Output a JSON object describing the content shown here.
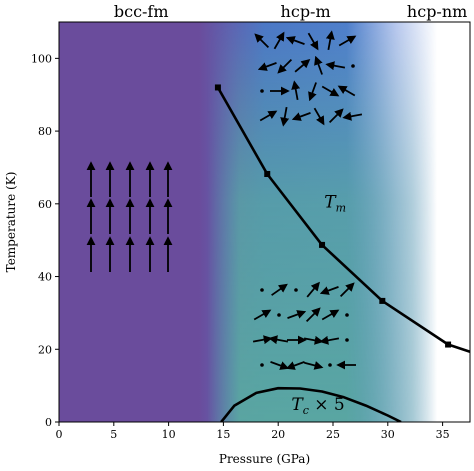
{
  "chart_data": {
    "type": "line",
    "xlabel": "Pressure (GPa)",
    "ylabel": "Temperature (K)",
    "xlim": [
      0,
      37.5
    ],
    "ylim": [
      0,
      110
    ],
    "xticks": [
      0,
      5,
      10,
      15,
      20,
      25,
      30,
      35
    ],
    "yticks": [
      0,
      20,
      40,
      60,
      80,
      100
    ],
    "grid": false,
    "phase_labels": [
      {
        "text": "bcc-fm",
        "x": 7.5
      },
      {
        "text": "hcp-m",
        "x": 22.5
      },
      {
        "text": "hcp-nm",
        "x": 34.5
      }
    ],
    "background_regions": [
      {
        "phase": "bcc-fm",
        "color": "#6a4c9c",
        "x_range": [
          0,
          14
        ]
      },
      {
        "phase": "hcp-m",
        "top_color": "#4a72c4",
        "bottom_color": "#5aa8a0",
        "x_range": [
          14,
          30
        ]
      },
      {
        "phase": "hcp-nm",
        "color": "#ffffff",
        "x_range": [
          30,
          37.5
        ]
      }
    ],
    "series": [
      {
        "name": "T_m",
        "label_main": "T",
        "label_sub": "m",
        "x": [
          14.5,
          19,
          24,
          29.5,
          35.5,
          37.5
        ],
        "y": [
          92,
          68.2,
          48.7,
          33.3,
          21.3,
          19.3
        ],
        "marker_indices": [
          0,
          1,
          2,
          3,
          4
        ],
        "color": "#000000"
      },
      {
        "name": "T_c x 5",
        "label_main": "T",
        "label_sub": "c",
        "label_suffix": " × 5",
        "x": [
          14.8,
          16,
          18,
          20,
          22,
          24,
          26,
          28,
          30,
          31.2
        ],
        "y": [
          0,
          4.5,
          8,
          9.3,
          9.2,
          8.4,
          6.8,
          4.5,
          1.8,
          0
        ],
        "color": "#000000"
      }
    ],
    "arrow_groups": [
      {
        "phase": "bcc-fm",
        "style": "ferromagnetic-aligned-up",
        "color": "#000000"
      },
      {
        "phase": "hcp-m",
        "style": "random-orientation",
        "color": "#000000"
      },
      {
        "phase": "hcp-m-low-T",
        "style": "partially-ordered",
        "color": "#000000"
      }
    ]
  }
}
